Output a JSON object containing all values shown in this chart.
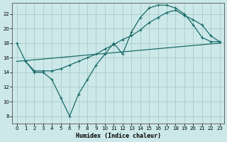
{
  "xlabel": "Humidex (Indice chaleur)",
  "bg_color": "#cce8e8",
  "grid_color": "#aacccc",
  "line_color": "#1a6b6b",
  "xlim": [
    -0.5,
    23.5
  ],
  "ylim": [
    7,
    23.5
  ],
  "xticks": [
    0,
    1,
    2,
    3,
    4,
    5,
    6,
    7,
    8,
    9,
    10,
    11,
    12,
    13,
    14,
    15,
    16,
    17,
    18,
    19,
    20,
    21,
    22,
    23
  ],
  "yticks": [
    8,
    10,
    12,
    14,
    16,
    18,
    20,
    22
  ],
  "line1_x": [
    0,
    1,
    2,
    3,
    4,
    5,
    6,
    7,
    8,
    9,
    10,
    11,
    12,
    13,
    14,
    15,
    16,
    17,
    18,
    19,
    20,
    21,
    22,
    23
  ],
  "line1_y": [
    18.0,
    15.5,
    14.0,
    14.0,
    13.0,
    10.5,
    8.0,
    11.0,
    13.0,
    15.0,
    16.5,
    18.0,
    16.5,
    19.5,
    21.5,
    22.8,
    23.2,
    23.2,
    22.8,
    22.0,
    20.5,
    18.8,
    18.2,
    18.2
  ],
  "line2_x": [
    1,
    2,
    3,
    4,
    5,
    6,
    7,
    8,
    9,
    10,
    11,
    12,
    13,
    14,
    15,
    16,
    17,
    18,
    19,
    20,
    21,
    22,
    23
  ],
  "line2_y": [
    15.5,
    14.2,
    14.2,
    14.2,
    14.5,
    15.0,
    15.5,
    16.0,
    16.5,
    17.2,
    17.8,
    18.5,
    19.0,
    19.8,
    20.8,
    21.5,
    22.2,
    22.5,
    21.8,
    21.2,
    20.5,
    19.0,
    18.2
  ],
  "line3_x": [
    0,
    23
  ],
  "line3_y": [
    15.5,
    18.0
  ]
}
